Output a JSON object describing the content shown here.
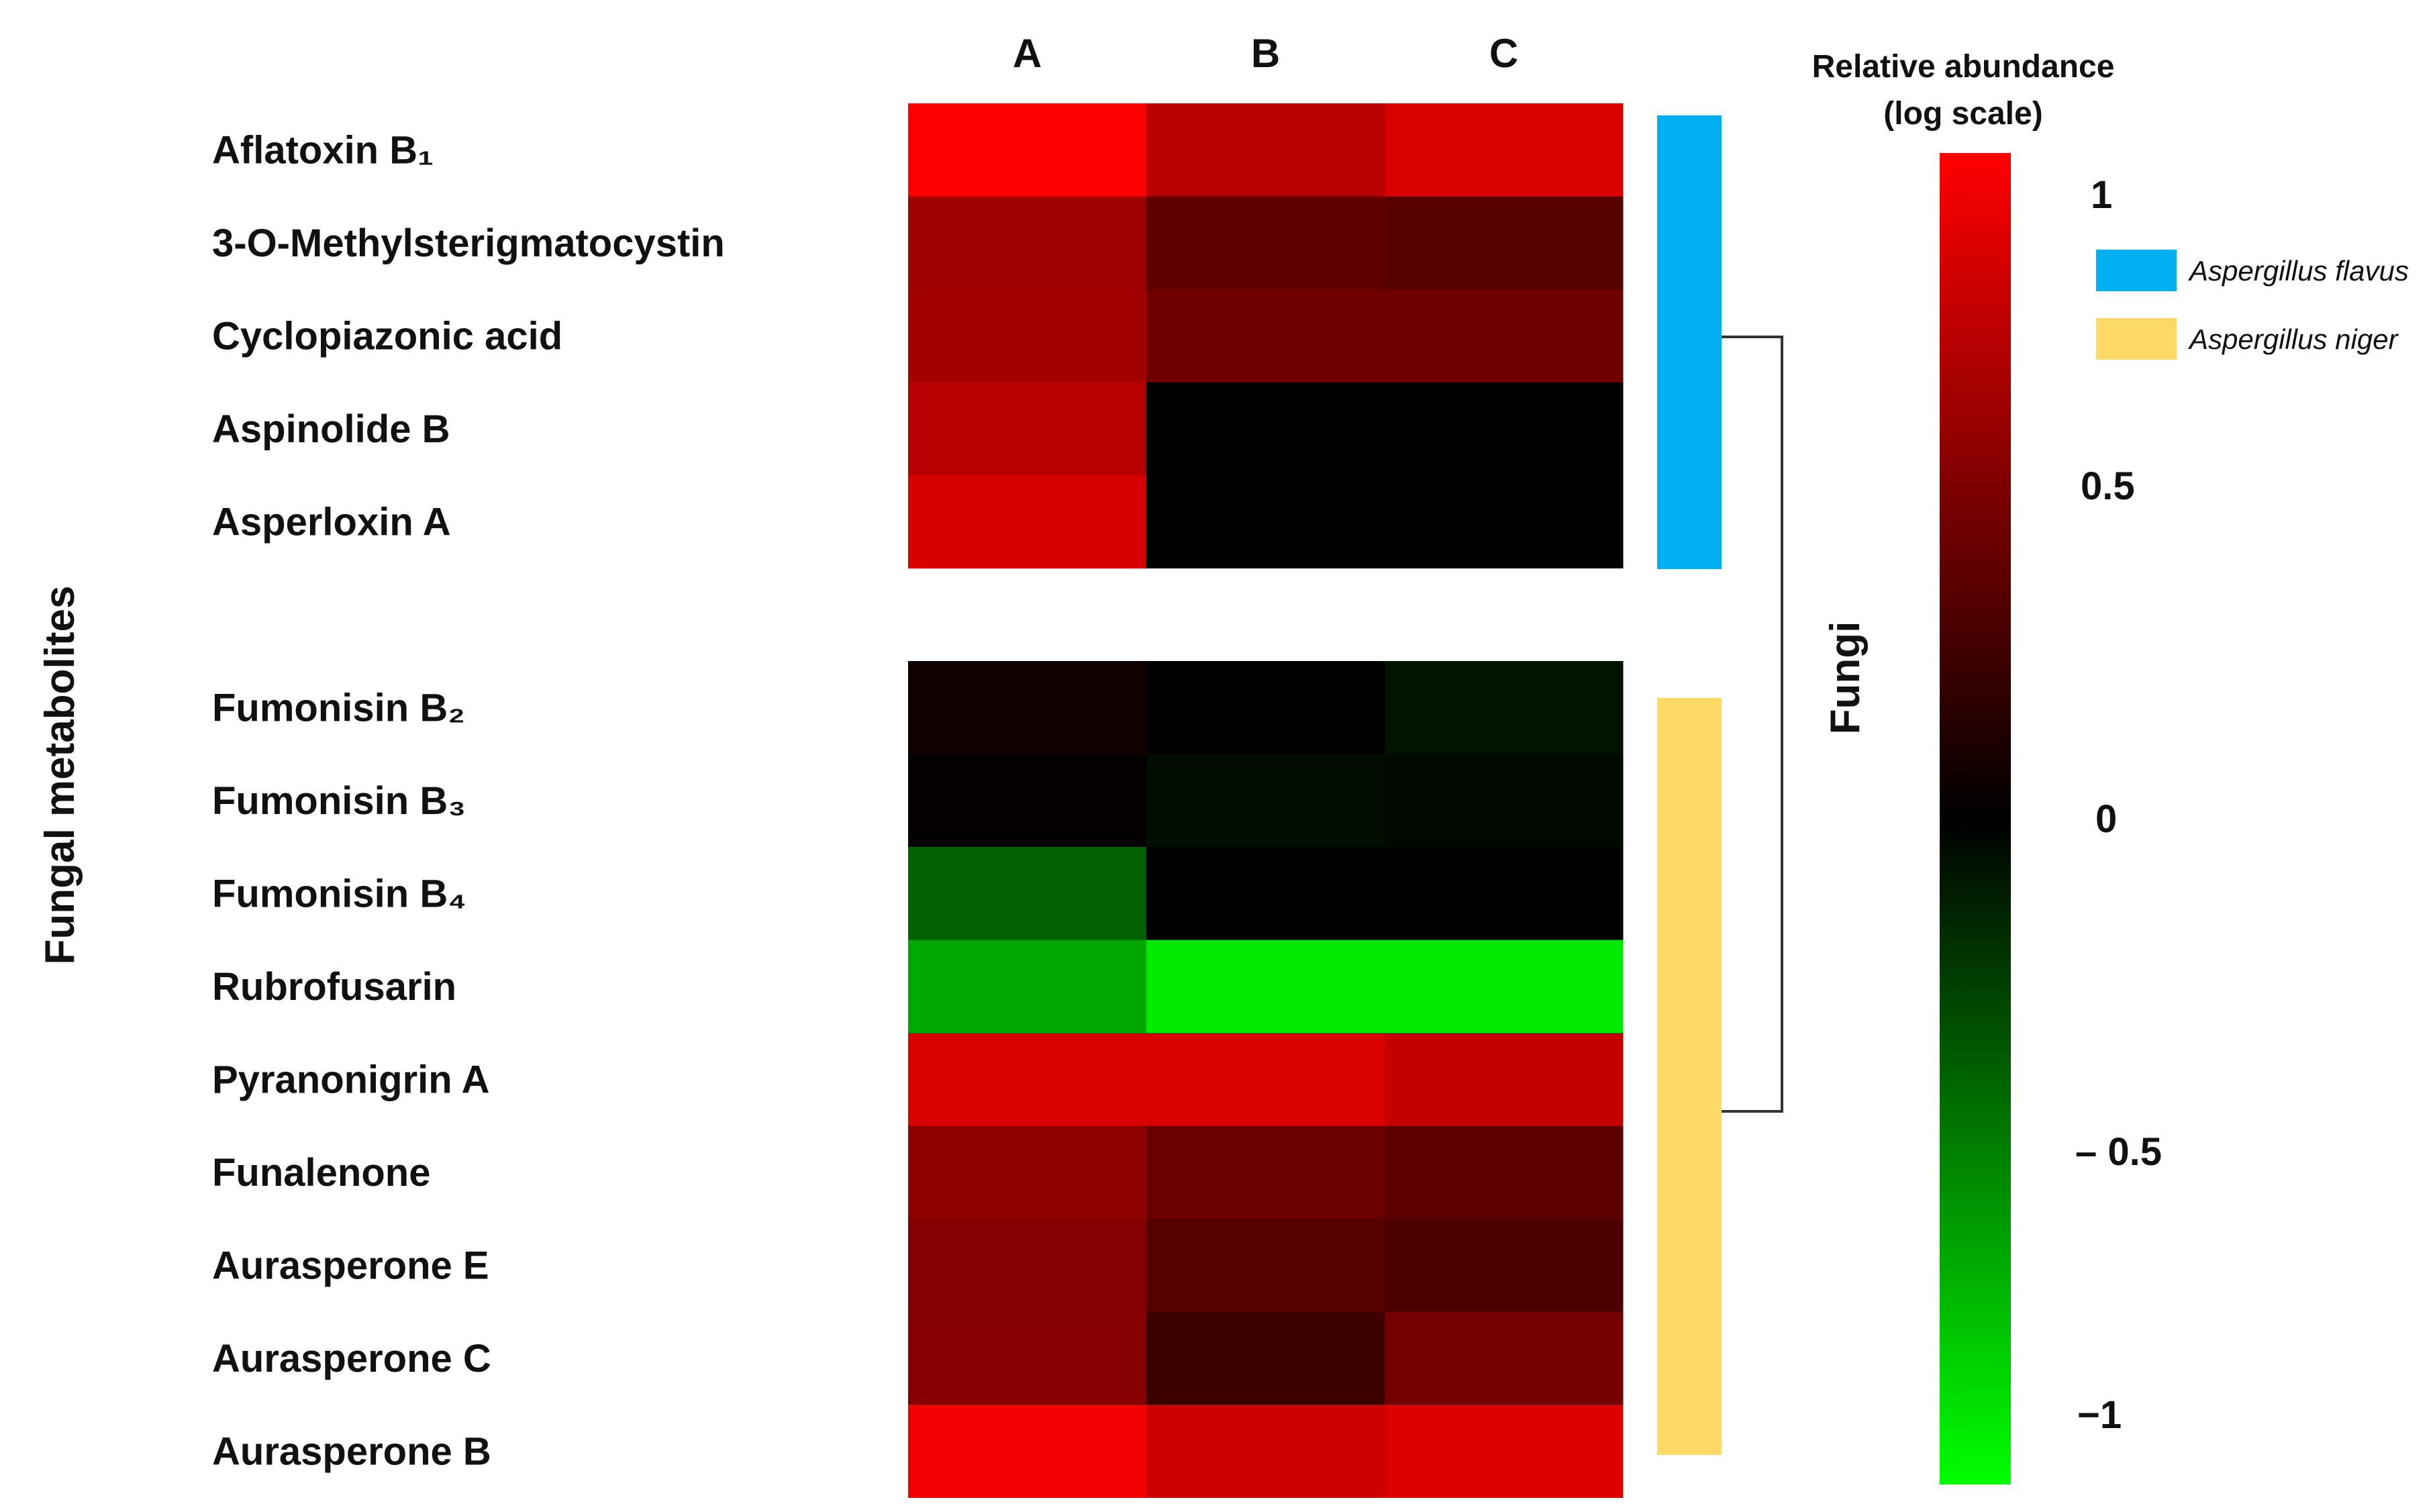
{
  "chart_data": {
    "type": "heatmap",
    "title": "",
    "ylabel": "Fungal metabolites",
    "columns": [
      "A",
      "B",
      "C"
    ],
    "groups": [
      {
        "name": "Aspergillus flavus",
        "color": "#00b0f0",
        "rows": [
          {
            "label": "Aflatoxin B₁",
            "values": [
              1.0,
              0.72,
              0.85
            ]
          },
          {
            "label": "3-O-Methylsterigmatocystin",
            "values": [
              0.62,
              0.38,
              0.34
            ]
          },
          {
            "label": "Cyclopiazonic acid",
            "values": [
              0.64,
              0.44,
              0.44
            ]
          },
          {
            "label": "Aspinolide B",
            "values": [
              0.72,
              0.0,
              0.0
            ]
          },
          {
            "label": "Asperloxin A",
            "values": [
              0.84,
              0.0,
              0.0
            ]
          }
        ]
      },
      {
        "name": "Aspergillus niger",
        "color": "#ffd966",
        "rows": [
          {
            "label": "Fumonisin B₂",
            "values": [
              0.07,
              0.0,
              -0.08
            ]
          },
          {
            "label": "Fumonisin B₃",
            "values": [
              0.02,
              -0.05,
              -0.03
            ]
          },
          {
            "label": "Fumonisin B₄",
            "values": [
              -0.38,
              0.0,
              0.0
            ]
          },
          {
            "label": "Rubrofusarin",
            "values": [
              -0.66,
              -0.92,
              -0.92
            ]
          },
          {
            "label": "Pyranonigrin A",
            "values": [
              0.85,
              0.85,
              0.77
            ]
          },
          {
            "label": "Funalenone",
            "values": [
              0.56,
              0.42,
              0.36
            ]
          },
          {
            "label": "Aurasperone E",
            "values": [
              0.52,
              0.34,
              0.3
            ]
          },
          {
            "label": "Aurasperone C",
            "values": [
              0.53,
              0.24,
              0.46
            ]
          },
          {
            "label": "Aurasperone B",
            "values": [
              0.95,
              0.8,
              0.87
            ]
          }
        ]
      }
    ],
    "color_scale": {
      "title_line1": "Relative abundance",
      "title_line2": "(log scale)",
      "min": -1,
      "max": 1,
      "low_color": "#00ff00",
      "mid_color": "#000000",
      "high_color": "#ff0000",
      "ticks": [
        {
          "value": 1,
          "label": "1"
        },
        {
          "value": 0.5,
          "label": "0.5"
        },
        {
          "value": 0,
          "label": "0"
        },
        {
          "value": -0.5,
          "label": "– 0.5"
        },
        {
          "value": -1,
          "label": "−1"
        }
      ]
    },
    "dendrogram_label": "Fungi",
    "legend": [
      {
        "label": "Aspergillus flavus",
        "color": "#00b0f0"
      },
      {
        "label": "Aspergillus niger",
        "color": "#ffd966"
      }
    ]
  }
}
